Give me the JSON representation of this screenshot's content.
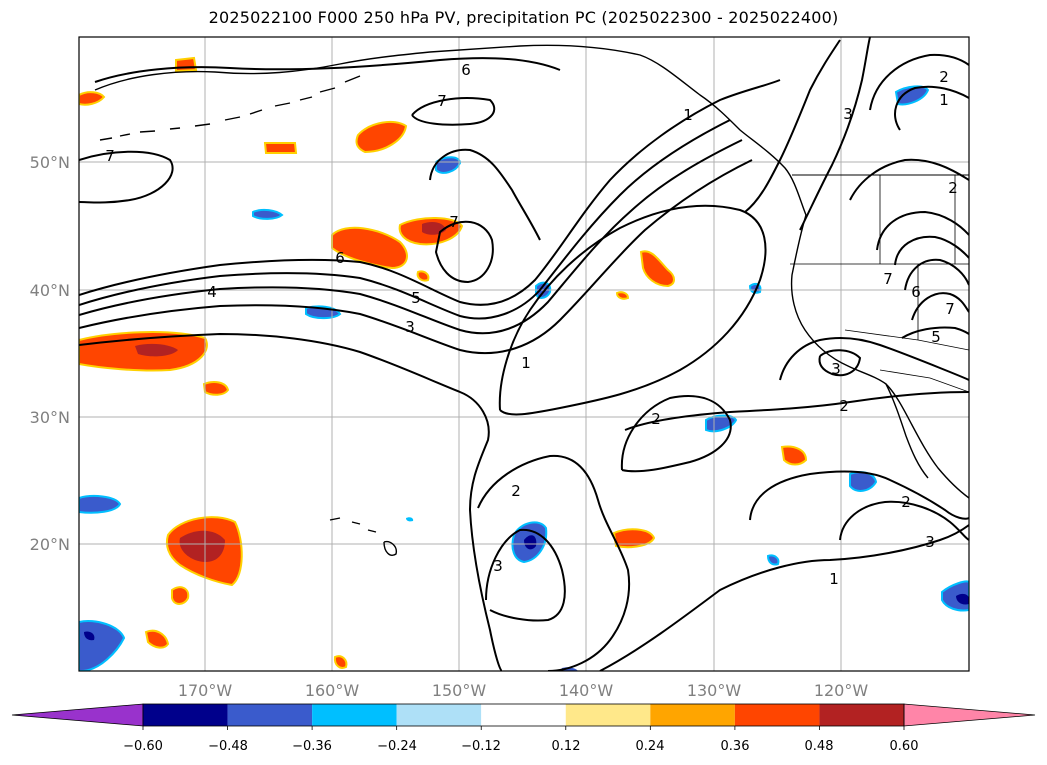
{
  "title": "2025022100 F000 250 hPa PV, precipitation PC (2025022300 - 2025022400)",
  "lat_labels": [
    "50°N",
    "40°N",
    "30°N",
    "20°N"
  ],
  "lon_labels": [
    "170°W",
    "160°W",
    "150°W",
    "140°W",
    "130°W",
    "120°W"
  ],
  "contour_labels": [
    "7",
    "6",
    "7",
    "7",
    "6",
    "5",
    "4",
    "3",
    "1",
    "2",
    "2",
    "3",
    "2",
    "1",
    "3",
    "2",
    "1",
    "3",
    "2",
    "1",
    "7",
    "6",
    "7",
    "5",
    "3",
    "2"
  ],
  "colorbar": {
    "ticks": [
      "−0.60",
      "−0.48",
      "−0.36",
      "−0.24",
      "−0.12",
      "0.12",
      "0.24",
      "0.36",
      "0.48",
      "0.60"
    ],
    "colors": [
      "#9932cc",
      "#00008b",
      "#3a5bcc",
      "#00bfff",
      "#aee0f7",
      "#ffffff",
      "#ffe88a",
      "#ffa500",
      "#ff4500",
      "#b22222",
      "#ff85a8"
    ]
  },
  "colors": {
    "grid": "#b0b0b0",
    "contour": "#000000",
    "tick_label": "#808080"
  }
}
